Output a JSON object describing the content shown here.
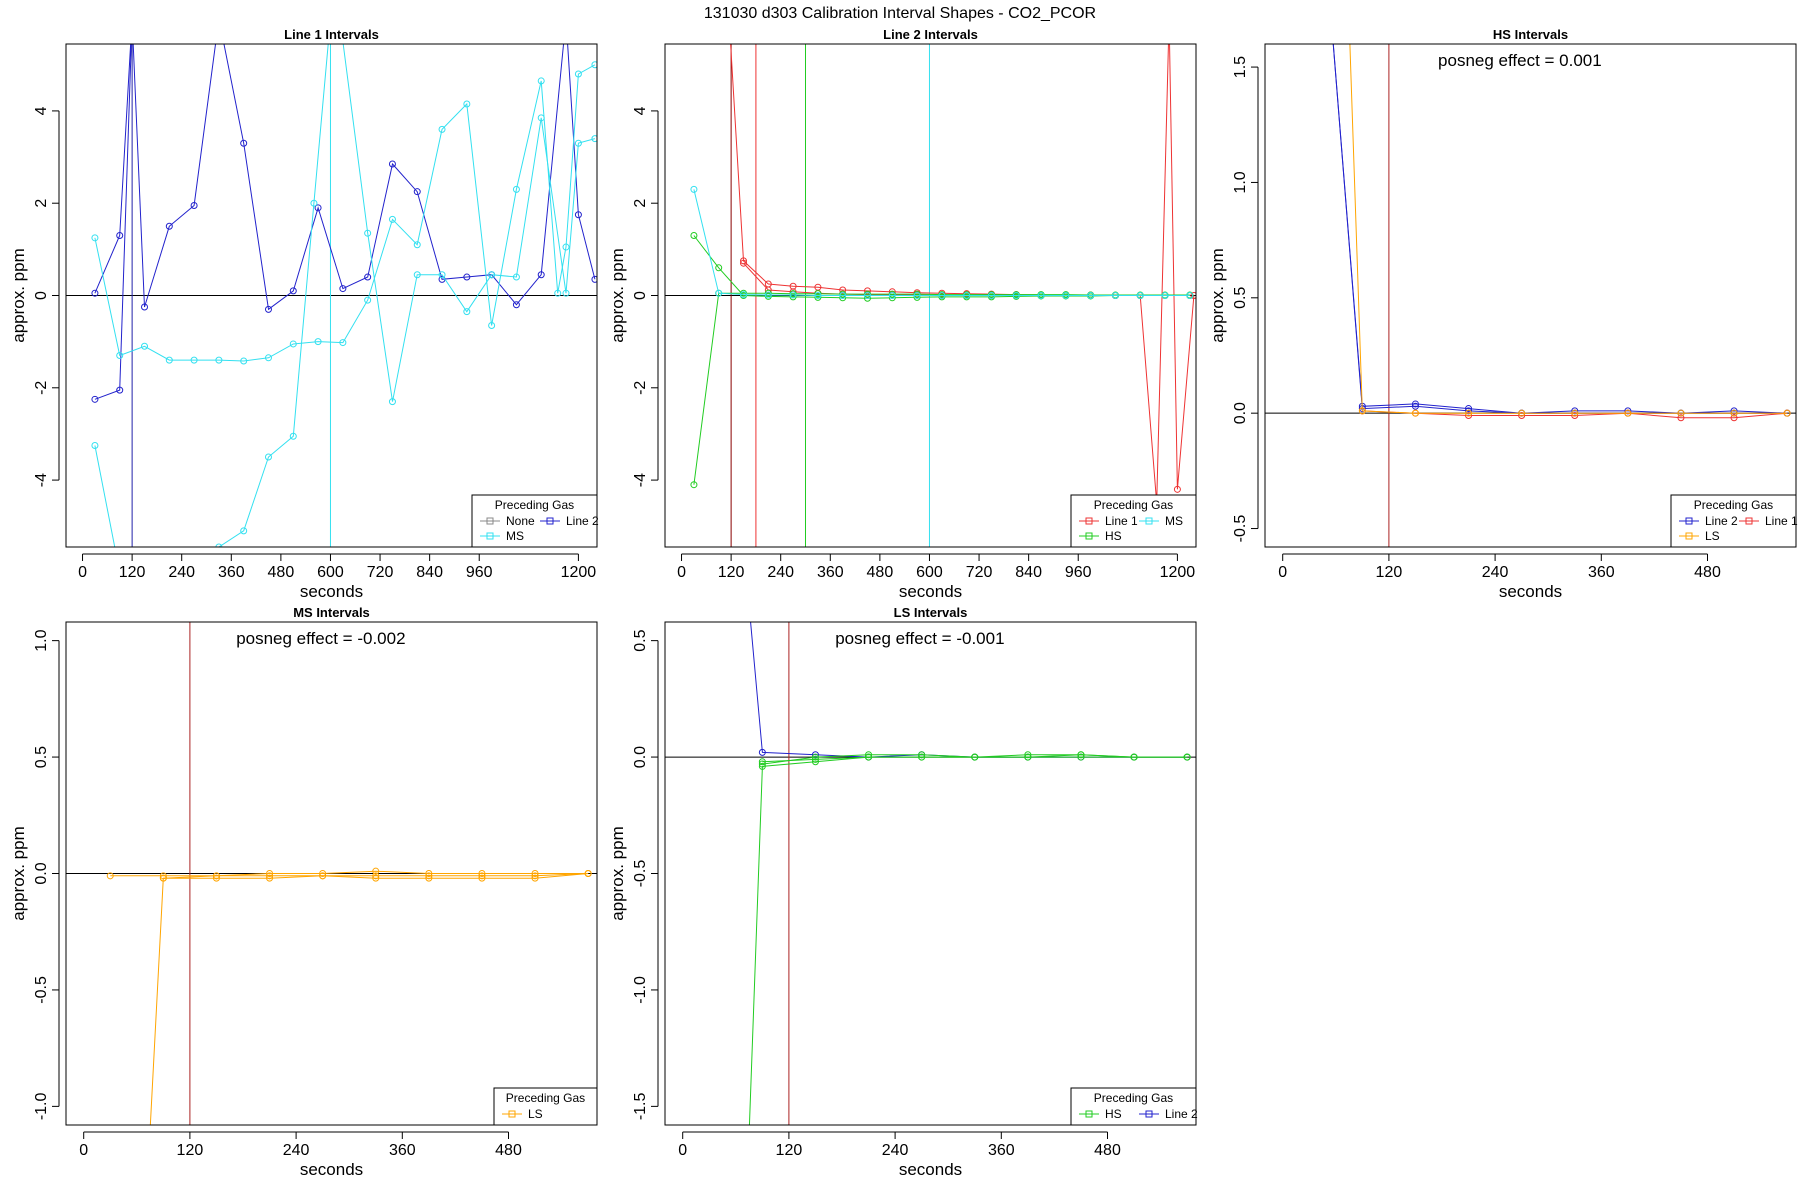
{
  "figure_title": "131030  d303   Calibration Interval Shapes - CO2_PCOR",
  "colors": {
    "None": "#888888",
    "MS": "#33e0f0",
    "Line 1": "#ee3333",
    "Line 2": "#2222cc",
    "HS": "#22cc22",
    "LS": "#ffa500",
    "vline": "#aa2222",
    "zero": "#000000"
  },
  "chart_data": [
    {
      "type": "line",
      "title": "Line 1 Intervals",
      "xlabel": "seconds",
      "ylabel": "approx. ppm",
      "xlim": [
        -40,
        1245
      ],
      "ylim": [
        -5.45,
        5.45
      ],
      "xticks": [
        0,
        120,
        240,
        360,
        480,
        600,
        720,
        840,
        960,
        1200
      ],
      "yticks": [
        -4,
        -2,
        0,
        2,
        4
      ],
      "grid": false,
      "legend_position": "bottom-right",
      "legend_title": "Preceding Gas",
      "legend": [
        {
          "name": "None",
          "color": "#888888"
        },
        {
          "name": "Line 2",
          "color": "#2222cc"
        },
        {
          "name": "MS",
          "color": "#33e0f0"
        }
      ],
      "vlines": [
        {
          "x": 120,
          "color": "#2222aa"
        },
        {
          "x": 600,
          "color": "#33e0f0"
        }
      ],
      "series": [
        {
          "color": "#2222cc",
          "x": [
            30,
            90,
            120,
            150,
            210,
            270,
            330,
            390,
            450,
            510,
            570,
            630,
            690,
            750,
            810,
            870,
            930,
            990,
            1050,
            1110,
            1170,
            1200,
            1240
          ],
          "y": [
            0.05,
            1.3,
            6.0,
            -0.25,
            1.5,
            1.95,
            6.0,
            3.3,
            -0.3,
            0.1,
            1.9,
            0.15,
            0.4,
            2.85,
            2.25,
            0.35,
            0.4,
            0.45,
            -0.2,
            0.45,
            6.0,
            1.75,
            0.35
          ]
        },
        {
          "color": "#2222cc",
          "x": [
            30,
            90,
            120
          ],
          "y": [
            -2.25,
            -2.05,
            6.0
          ]
        },
        {
          "color": "#33e0f0",
          "x": [
            30,
            90,
            150,
            210,
            270,
            330,
            390,
            450,
            510,
            570,
            630,
            690,
            750,
            810,
            870,
            930,
            990,
            1050,
            1110,
            1150,
            1170,
            1200,
            1240
          ],
          "y": [
            1.25,
            -1.3,
            -1.1,
            -1.4,
            -1.4,
            -1.4,
            -1.42,
            -1.35,
            -1.05,
            -1.0,
            -1.02,
            -0.1,
            1.65,
            1.1,
            3.6,
            4.15,
            -0.65,
            2.3,
            4.65,
            0.05,
            1.05,
            4.8,
            5.0
          ]
        },
        {
          "color": "#33e0f0",
          "x": [
            30,
            90,
            330,
            390,
            450,
            510,
            560,
            600,
            630,
            690,
            750,
            810,
            870,
            930,
            990,
            1050,
            1110,
            1170,
            1200,
            1240
          ],
          "y": [
            -3.25,
            -6.0,
            -5.45,
            -5.1,
            -3.5,
            -3.05,
            2.0,
            6.0,
            5.5,
            1.35,
            -2.3,
            0.45,
            0.45,
            -0.35,
            0.45,
            0.4,
            3.85,
            0.05,
            3.3,
            3.4
          ]
        }
      ]
    },
    {
      "type": "line",
      "title": "Line 2 Intervals",
      "xlabel": "seconds",
      "ylabel": "approx. ppm",
      "xlim": [
        -40,
        1245
      ],
      "ylim": [
        -5.45,
        5.45
      ],
      "xticks": [
        0,
        120,
        240,
        360,
        480,
        600,
        720,
        840,
        960,
        1200
      ],
      "yticks": [
        -4,
        -2,
        0,
        2,
        4
      ],
      "grid": false,
      "legend_position": "bottom-right",
      "legend_title": "Preceding Gas",
      "legend": [
        {
          "name": "Line 1",
          "color": "#ee3333"
        },
        {
          "name": "MS",
          "color": "#33e0f0"
        },
        {
          "name": "HS",
          "color": "#22cc22"
        }
      ],
      "vlines": [
        {
          "x": 120,
          "color": "#880000"
        },
        {
          "x": 180,
          "color": "#ee3333"
        },
        {
          "x": 300,
          "color": "#22cc22"
        },
        {
          "x": 600,
          "color": "#33e0f0"
        }
      ],
      "series": [
        {
          "color": "#ee3333",
          "x": [
            115,
            150,
            210,
            270,
            330,
            390,
            450,
            510,
            570,
            630,
            690,
            750,
            810,
            870,
            930,
            990,
            1050,
            1110,
            1150,
            1180,
            1200,
            1240
          ],
          "y": [
            6.0,
            0.75,
            0.25,
            0.2,
            0.18,
            0.12,
            0.1,
            0.08,
            0.06,
            0.05,
            0.04,
            0.03,
            0.02,
            0.01,
            0.01,
            0.01,
            0.0,
            0.0,
            -4.5,
            6.0,
            -4.2,
            0.0
          ]
        },
        {
          "color": "#ee3333",
          "x": [
            150,
            210,
            270,
            330,
            390,
            450,
            510,
            570,
            630,
            690,
            750,
            810,
            870,
            930,
            990,
            1050,
            1110,
            1170,
            1230
          ],
          "y": [
            0.7,
            0.12,
            0.08,
            0.05,
            0.03,
            0.02,
            0.02,
            0.01,
            0.0,
            0.0,
            0.0,
            0.0,
            0.0,
            0.0,
            0.0,
            0.0,
            0.0,
            0.0,
            0.0
          ]
        },
        {
          "color": "#22cc22",
          "x": [
            30,
            90,
            150,
            210,
            270,
            330,
            390,
            450,
            510,
            570,
            630,
            690,
            750,
            810,
            870,
            930,
            990,
            1050,
            1110,
            1170,
            1230
          ],
          "y": [
            1.3,
            0.6,
            0.0,
            -0.02,
            -0.03,
            -0.04,
            -0.05,
            -0.06,
            -0.05,
            -0.04,
            -0.03,
            -0.03,
            -0.03,
            -0.02,
            -0.01,
            -0.01,
            -0.01,
            0.0,
            0.0,
            0.0,
            0.0
          ]
        },
        {
          "color": "#22cc22",
          "x": [
            30,
            90,
            150,
            210,
            270,
            330,
            390,
            450,
            510,
            570,
            630,
            690,
            750,
            810,
            870,
            930,
            990,
            1050,
            1110,
            1170,
            1230
          ],
          "y": [
            -4.1,
            0.05,
            0.05,
            0.05,
            0.04,
            0.04,
            0.03,
            0.03,
            0.03,
            0.03,
            0.02,
            0.02,
            0.02,
            0.02,
            0.02,
            0.02,
            0.01,
            0.01,
            0.01,
            0.01,
            0.01
          ]
        },
        {
          "color": "#33e0f0",
          "x": [
            30,
            90,
            150,
            210,
            270,
            330,
            390,
            450,
            510,
            570,
            630,
            690,
            750,
            810,
            870,
            930,
            990,
            1050,
            1110,
            1170,
            1230
          ],
          "y": [
            2.3,
            0.05,
            0.02,
            0.01,
            0.01,
            0.0,
            0.0,
            0.0,
            0.0,
            0.0,
            0.0,
            0.0,
            0.0,
            0.0,
            0.0,
            0.0,
            0.0,
            0.0,
            0.0,
            0.0,
            0.0
          ]
        }
      ]
    },
    {
      "type": "line",
      "title": "HS Intervals",
      "xlabel": "seconds",
      "ylabel": "approx. ppm",
      "annotation": "posneg effect = 0.001",
      "xlim": [
        -20,
        580
      ],
      "ylim": [
        -0.58,
        1.6
      ],
      "xticks": [
        0,
        120,
        240,
        360,
        480
      ],
      "yticks": [
        -0.5,
        0.0,
        0.5,
        1.0,
        1.5
      ],
      "grid": false,
      "legend_position": "bottom-right",
      "legend_title": "Preceding Gas",
      "legend": [
        {
          "name": "Line 2",
          "color": "#2222cc"
        },
        {
          "name": "Line 1",
          "color": "#ee3333"
        },
        {
          "name": "LS",
          "color": "#ffa500"
        }
      ],
      "vlines": [
        {
          "x": 120,
          "color": "#aa2222"
        }
      ],
      "series": [
        {
          "color": "#2222cc",
          "x": [
            55,
            90,
            150,
            210,
            270,
            330,
            390,
            450,
            510,
            570
          ],
          "y": [
            1.7,
            0.03,
            0.04,
            0.02,
            0.0,
            0.01,
            0.01,
            0.0,
            0.01,
            0.0
          ]
        },
        {
          "color": "#2222cc",
          "x": [
            55,
            90,
            150,
            210,
            270,
            330,
            390,
            450,
            510,
            570
          ],
          "y": [
            1.7,
            0.02,
            0.03,
            0.01,
            0.0,
            0.0,
            0.0,
            0.0,
            0.0,
            0.0
          ]
        },
        {
          "color": "#ee3333",
          "x": [
            90,
            150,
            210,
            270,
            330,
            390,
            450,
            510,
            570
          ],
          "y": [
            0.01,
            0.0,
            -0.01,
            -0.01,
            -0.01,
            0.0,
            -0.02,
            -0.02,
            0.0
          ]
        },
        {
          "color": "#ffa500",
          "x": [
            75,
            90,
            150,
            210,
            270,
            330,
            390,
            450,
            510,
            570
          ],
          "y": [
            1.7,
            0.01,
            0.0,
            0.0,
            0.0,
            0.0,
            0.0,
            0.0,
            0.0,
            0.0
          ]
        }
      ]
    },
    {
      "type": "line",
      "title": "MS Intervals",
      "xlabel": "seconds",
      "ylabel": "approx. ppm",
      "annotation": "posneg effect = -0.002",
      "xlim": [
        -20,
        580
      ],
      "ylim": [
        -1.08,
        1.08
      ],
      "xticks": [
        0,
        120,
        240,
        360,
        480
      ],
      "yticks": [
        -1.0,
        -0.5,
        0.0,
        0.5,
        1.0
      ],
      "grid": false,
      "legend_position": "bottom-right",
      "legend_title": "Preceding Gas",
      "legend": [
        {
          "name": "LS",
          "color": "#ffa500"
        }
      ],
      "vlines": [
        {
          "x": 120,
          "color": "#aa2222"
        }
      ],
      "series": [
        {
          "color": "#ffa500",
          "x": [
            30,
            90,
            150,
            210,
            270,
            330,
            390,
            450,
            510,
            570
          ],
          "y": [
            -0.01,
            -0.01,
            -0.01,
            -0.01,
            -0.01,
            -0.01,
            -0.01,
            -0.01,
            -0.01,
            0.0
          ]
        },
        {
          "color": "#ffa500",
          "x": [
            75,
            90,
            150,
            210,
            270,
            330,
            390,
            450,
            510,
            570
          ],
          "y": [
            -1.1,
            -0.02,
            -0.02,
            -0.02,
            -0.01,
            -0.02,
            -0.02,
            -0.02,
            -0.02,
            0.0
          ]
        },
        {
          "color": "#ffa500",
          "x": [
            90,
            150,
            210,
            270,
            330,
            390,
            450,
            510,
            570
          ],
          "y": [
            -0.02,
            -0.01,
            0.0,
            0.0,
            0.01,
            0.0,
            0.0,
            0.0,
            0.0
          ]
        }
      ]
    },
    {
      "type": "line",
      "title": "LS Intervals",
      "xlabel": "seconds",
      "ylabel": "approx. ppm",
      "annotation": "posneg effect = -0.001",
      "xlim": [
        -20,
        580
      ],
      "ylim": [
        -1.58,
        0.58
      ],
      "xticks": [
        0,
        120,
        240,
        360,
        480
      ],
      "yticks": [
        -1.5,
        -1.0,
        -0.5,
        0.0,
        0.5
      ],
      "grid": false,
      "legend_position": "bottom-right",
      "legend_title": "Preceding Gas",
      "legend": [
        {
          "name": "HS",
          "color": "#22cc22"
        },
        {
          "name": "Line 2",
          "color": "#2222cc"
        }
      ],
      "vlines": [
        {
          "x": 120,
          "color": "#aa2222"
        }
      ],
      "series": [
        {
          "color": "#2222cc",
          "x": [
            75,
            90,
            150,
            210,
            270,
            330,
            390,
            450,
            510,
            570
          ],
          "y": [
            0.65,
            0.02,
            0.01,
            0.0,
            0.01,
            0.0,
            0.0,
            0.0,
            0.0,
            0.0
          ]
        },
        {
          "color": "#22cc22",
          "x": [
            75,
            90,
            150,
            210,
            270,
            330,
            390,
            450,
            510,
            570
          ],
          "y": [
            -1.62,
            -0.04,
            -0.02,
            0.0,
            0.0,
            0.0,
            0.0,
            0.01,
            0.0,
            0.0
          ]
        },
        {
          "color": "#22cc22",
          "x": [
            90,
            150,
            210,
            270,
            330,
            390,
            450,
            510,
            570
          ],
          "y": [
            -0.02,
            -0.01,
            0.0,
            0.0,
            0.0,
            0.0,
            0.0,
            0.0,
            0.0
          ]
        },
        {
          "color": "#22cc22",
          "x": [
            90,
            150,
            210,
            270,
            330,
            390,
            450,
            510,
            570
          ],
          "y": [
            -0.03,
            0.0,
            0.01,
            0.01,
            0.0,
            0.01,
            0.01,
            0.0,
            0.0
          ]
        }
      ]
    }
  ]
}
